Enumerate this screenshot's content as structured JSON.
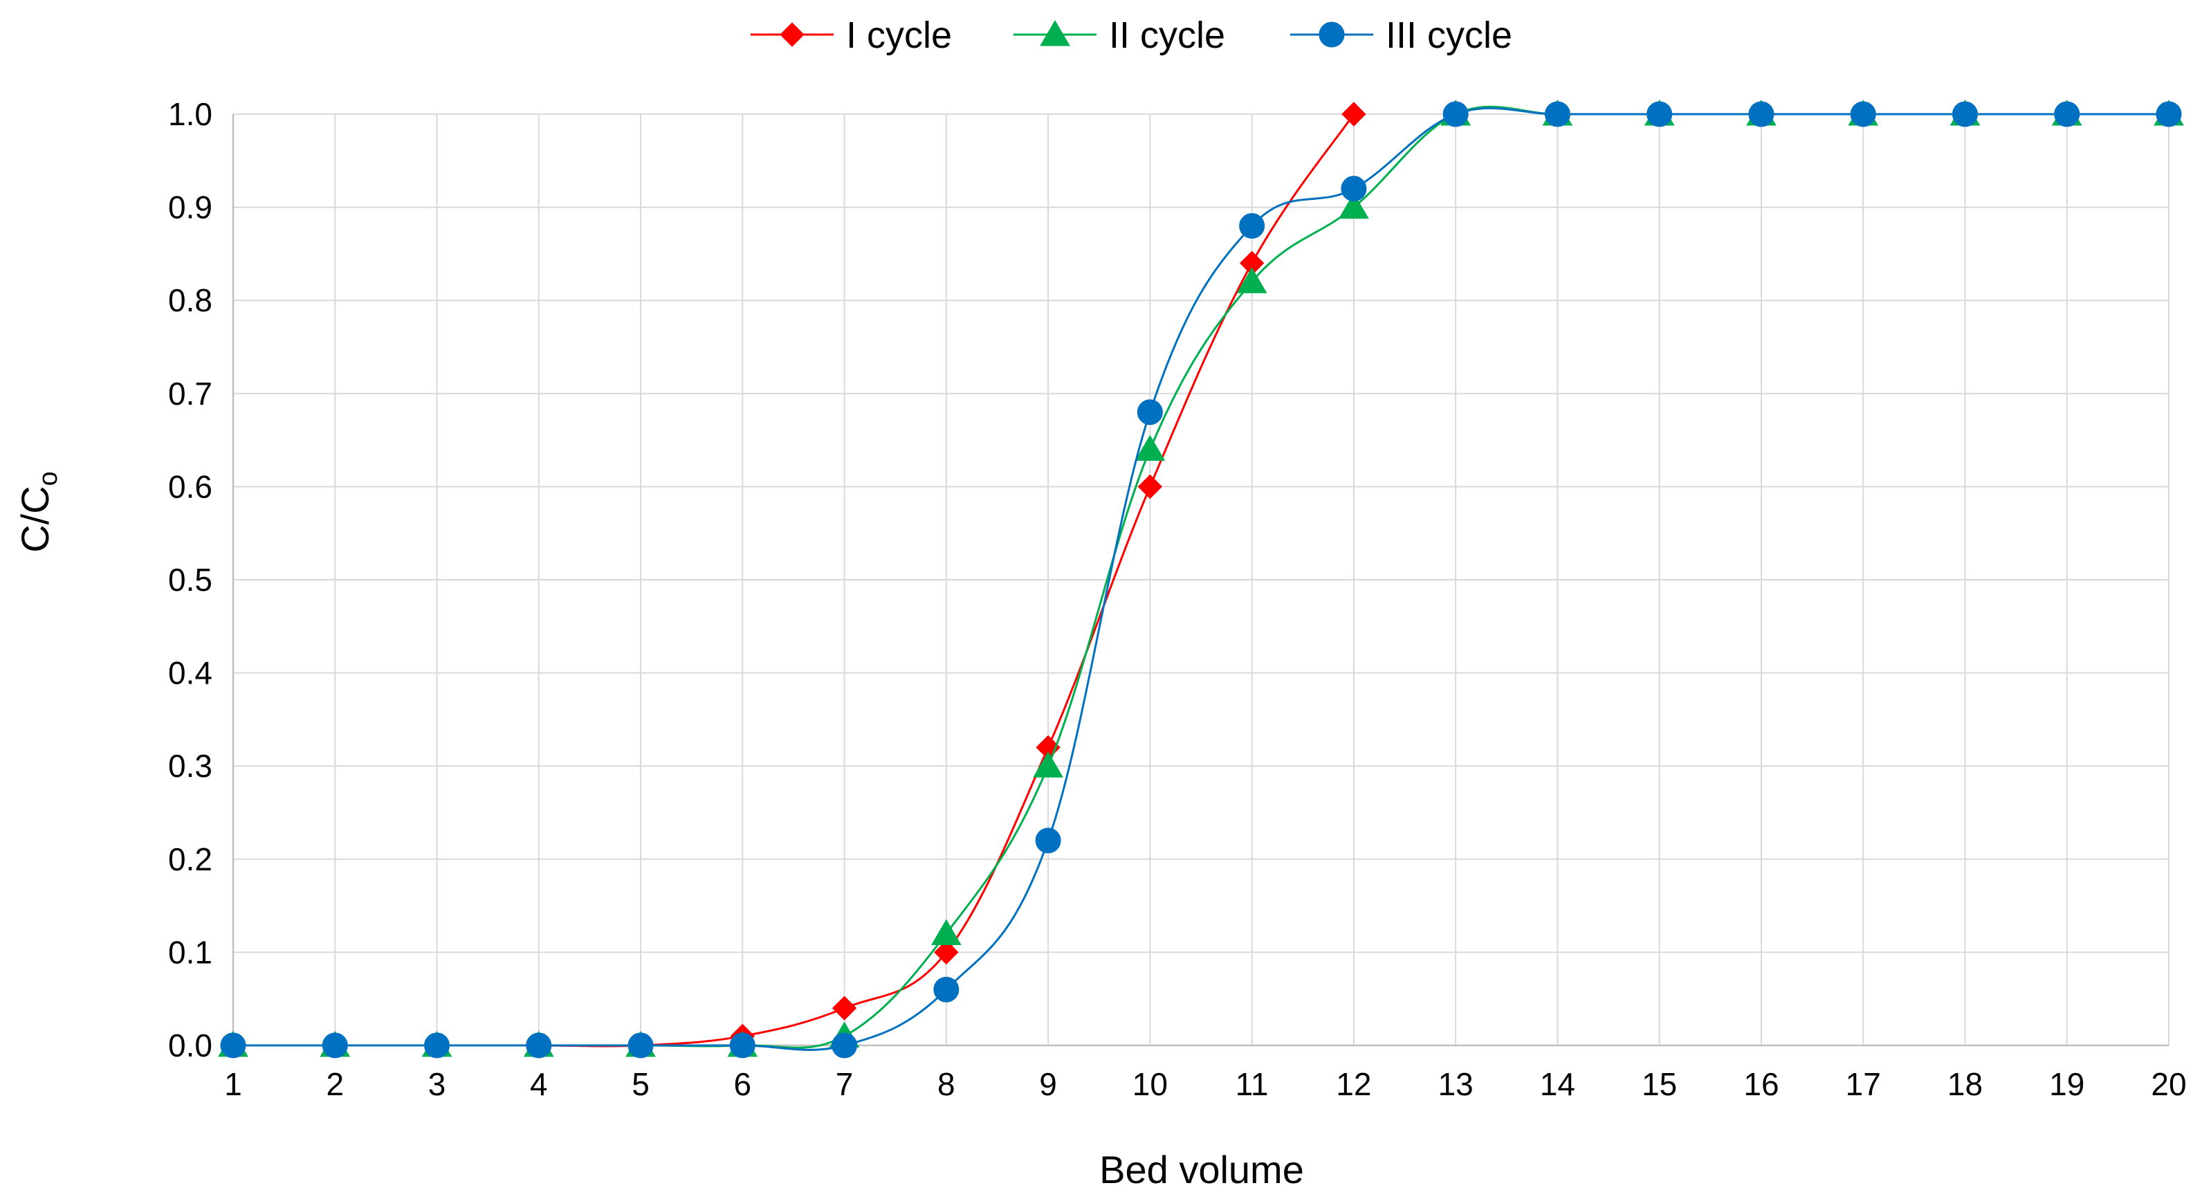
{
  "chart_data": {
    "type": "line",
    "title": "",
    "xlabel": "Bed volume",
    "ylabel": {
      "main": "C/C",
      "sub": "o"
    },
    "x": [
      1,
      2,
      3,
      4,
      5,
      6,
      7,
      8,
      9,
      10,
      11,
      12,
      13,
      14,
      15,
      16,
      17,
      18,
      19,
      20
    ],
    "xlim": [
      1,
      20
    ],
    "ylim": [
      0,
      1
    ],
    "xticks": [
      "1",
      "2",
      "3",
      "4",
      "5",
      "6",
      "7",
      "8",
      "9",
      "10",
      "11",
      "12",
      "13",
      "14",
      "15",
      "16",
      "17",
      "18",
      "19",
      "20"
    ],
    "yticks": [
      "0.0",
      "0.1",
      "0.2",
      "0.3",
      "0.4",
      "0.5",
      "0.6",
      "0.7",
      "0.8",
      "0.9",
      "1.0"
    ],
    "grid": true,
    "legend_position": "top",
    "series": [
      {
        "name": "I cycle",
        "color": "#ff0000",
        "marker": "diamond",
        "points": [
          [
            1,
            0
          ],
          [
            2,
            0
          ],
          [
            3,
            0
          ],
          [
            4,
            0
          ],
          [
            5,
            0
          ],
          [
            6,
            0.01
          ],
          [
            7,
            0.04
          ],
          [
            8,
            0.1
          ],
          [
            9,
            0.32
          ],
          [
            10,
            0.6
          ],
          [
            11,
            0.84
          ],
          [
            12,
            1.0
          ]
        ]
      },
      {
        "name": "II cycle",
        "color": "#00b050",
        "marker": "triangle",
        "points": [
          [
            1,
            0
          ],
          [
            2,
            0
          ],
          [
            3,
            0
          ],
          [
            4,
            0
          ],
          [
            5,
            0
          ],
          [
            6,
            0
          ],
          [
            7,
            0.01
          ],
          [
            8,
            0.12
          ],
          [
            9,
            0.3
          ],
          [
            10,
            0.64
          ],
          [
            11,
            0.82
          ],
          [
            12,
            0.9
          ],
          [
            13,
            1.0
          ],
          [
            14,
            1.0
          ],
          [
            15,
            1.0
          ],
          [
            16,
            1.0
          ],
          [
            17,
            1.0
          ],
          [
            18,
            1.0
          ],
          [
            19,
            1.0
          ],
          [
            20,
            1.0
          ]
        ]
      },
      {
        "name": "III cycle",
        "color": "#0070c0",
        "marker": "circle",
        "points": [
          [
            1,
            0
          ],
          [
            2,
            0
          ],
          [
            3,
            0
          ],
          [
            4,
            0
          ],
          [
            5,
            0
          ],
          [
            6,
            0
          ],
          [
            7,
            0
          ],
          [
            8,
            0.06
          ],
          [
            9,
            0.22
          ],
          [
            10,
            0.68
          ],
          [
            11,
            0.88
          ],
          [
            12,
            0.92
          ],
          [
            13,
            1.0
          ],
          [
            14,
            1.0
          ],
          [
            15,
            1.0
          ],
          [
            16,
            1.0
          ],
          [
            17,
            1.0
          ],
          [
            18,
            1.0
          ],
          [
            19,
            1.0
          ],
          [
            20,
            1.0
          ]
        ]
      }
    ]
  }
}
